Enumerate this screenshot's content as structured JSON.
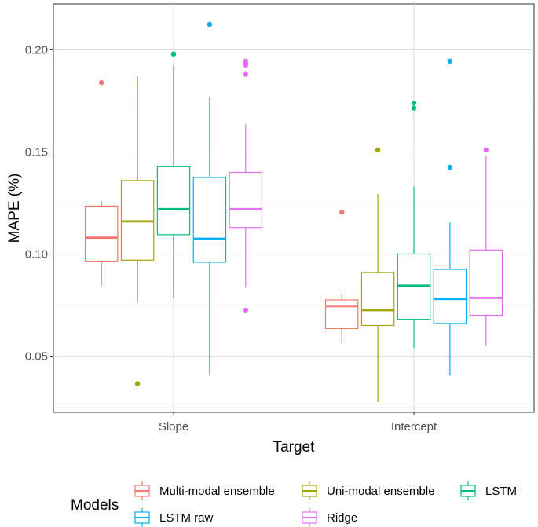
{
  "chart_data": {
    "type": "boxplot",
    "xlabel": "Target",
    "ylabel": "MAPE (%)",
    "ylim": [
      0.0225,
      0.2225
    ],
    "yticks": [
      0.05,
      0.1,
      0.15,
      0.2
    ],
    "ytick_labels": [
      "0.05",
      "0.10",
      "0.15",
      "0.20"
    ],
    "categories": [
      "Slope",
      "Intercept"
    ],
    "legend": {
      "title": "Models",
      "position": "bottom"
    },
    "series": [
      {
        "name": "Multi-modal ensemble",
        "color": "#F8766D",
        "boxes": [
          {
            "category": "Slope",
            "low": 0.0845,
            "q1": 0.0965,
            "median": 0.108,
            "q3": 0.1235,
            "high": 0.126,
            "outliers": [
              0.184
            ]
          },
          {
            "category": "Intercept",
            "low": 0.0565,
            "q1": 0.0635,
            "median": 0.0745,
            "q3": 0.0775,
            "high": 0.0805,
            "outliers": [
              0.1205
            ]
          }
        ]
      },
      {
        "name": "Uni-modal ensemble",
        "color": "#A3A500",
        "boxes": [
          {
            "category": "Slope",
            "low": 0.0765,
            "q1": 0.097,
            "median": 0.116,
            "q3": 0.136,
            "high": 0.187,
            "outliers": [
              0.0365
            ]
          },
          {
            "category": "Intercept",
            "low": 0.0275,
            "q1": 0.065,
            "median": 0.0725,
            "q3": 0.091,
            "high": 0.1295,
            "outliers": [
              0.151
            ]
          }
        ]
      },
      {
        "name": "LSTM",
        "color": "#00BF7D",
        "boxes": [
          {
            "category": "Slope",
            "low": 0.0785,
            "q1": 0.1095,
            "median": 0.122,
            "q3": 0.143,
            "high": 0.1925,
            "outliers": [
              0.198
            ]
          },
          {
            "category": "Intercept",
            "low": 0.054,
            "q1": 0.068,
            "median": 0.0845,
            "q3": 0.1,
            "high": 0.133,
            "outliers": [
              0.1715,
              0.174
            ]
          }
        ]
      },
      {
        "name": "LSTM raw",
        "color": "#00B0F6",
        "boxes": [
          {
            "category": "Slope",
            "low": 0.0405,
            "q1": 0.096,
            "median": 0.1075,
            "q3": 0.1375,
            "high": 0.177,
            "outliers": [
              0.2125
            ]
          },
          {
            "category": "Intercept",
            "low": 0.0405,
            "q1": 0.066,
            "median": 0.078,
            "q3": 0.0925,
            "high": 0.1155,
            "outliers": [
              0.1425,
              0.1945
            ]
          }
        ]
      },
      {
        "name": "Ridge",
        "color": "#E76BF3",
        "boxes": [
          {
            "category": "Slope",
            "low": 0.0835,
            "q1": 0.113,
            "median": 0.122,
            "q3": 0.14,
            "high": 0.1635,
            "outliers": [
              0.0725,
              0.188,
              0.1925,
              0.1935,
              0.1945
            ]
          },
          {
            "category": "Intercept",
            "low": 0.055,
            "q1": 0.07,
            "median": 0.0785,
            "q3": 0.102,
            "high": 0.148,
            "outliers": [
              0.151
            ]
          }
        ]
      }
    ]
  }
}
